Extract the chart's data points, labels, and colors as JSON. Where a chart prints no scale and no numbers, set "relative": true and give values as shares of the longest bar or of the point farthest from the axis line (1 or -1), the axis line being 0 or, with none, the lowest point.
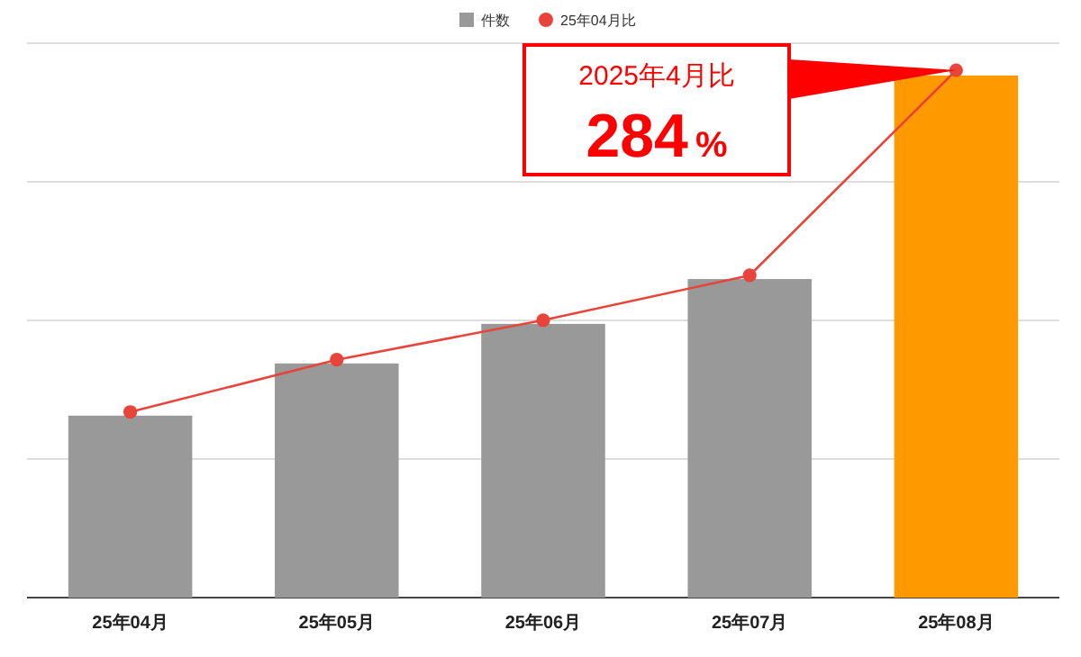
{
  "chart_data": {
    "type": "bar",
    "relative": true,
    "grid": "y",
    "legend": "top",
    "marker": "circle",
    "line_style": "solid",
    "categories": [
      "25年04月",
      "25年05月",
      "25年06月",
      "25年07月",
      "25年08月"
    ],
    "series": [
      {
        "name": "件数",
        "color": "#999999",
        "colors": [
          "#999999",
          "#999999",
          "#999999",
          "#999999",
          "#ff9900"
        ],
        "values": [
          0.345,
          0.444,
          0.519,
          0.604,
          0.99
        ]
      },
      {
        "name": "25年04月比",
        "type": "line",
        "color": "#e8443a",
        "values": [
          0.352,
          0.451,
          0.526,
          0.611,
          1
        ]
      }
    ],
    "annotations": [
      "2025年4月比",
      "284%"
    ]
  }
}
